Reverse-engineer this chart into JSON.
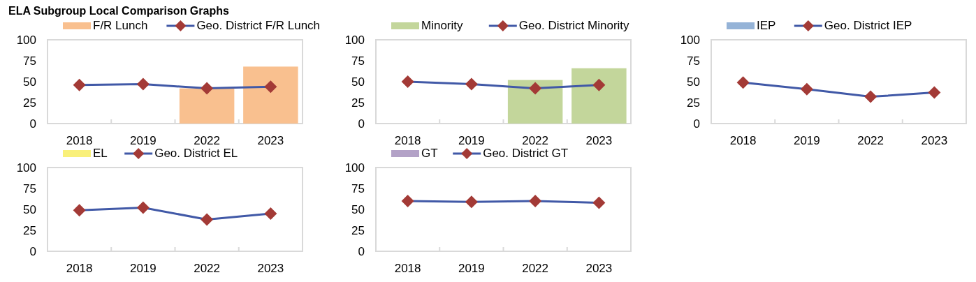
{
  "chart_data": [
    {
      "type": "bar",
      "title": "ELA Subgroup Local Comparison Graphs",
      "categories": [
        "2018",
        "2019",
        "2022",
        "2023"
      ],
      "ylim": [
        0,
        100
      ],
      "yticks": [
        0,
        25,
        50,
        75,
        100
      ],
      "grid": false,
      "legend": "top",
      "marker": "diamond",
      "series": [
        {
          "name": "F/R Lunch",
          "color": "#f9c08f",
          "values": [
            null,
            null,
            42,
            68
          ]
        },
        {
          "name": "Geo. District F/R Lunch",
          "type": "line",
          "color": "#4159a7",
          "values": [
            46,
            47,
            42,
            44
          ]
        }
      ]
    },
    {
      "type": "bar",
      "categories": [
        "2018",
        "2019",
        "2022",
        "2023"
      ],
      "ylim": [
        0,
        100
      ],
      "yticks": [
        0,
        25,
        50,
        75,
        100
      ],
      "grid": false,
      "legend": "top",
      "marker": "diamond",
      "series": [
        {
          "name": "Minority",
          "color": "#c3d69b",
          "values": [
            null,
            null,
            52,
            66
          ]
        },
        {
          "name": "Geo. District Minority",
          "type": "line",
          "color": "#4159a7",
          "values": [
            50,
            47,
            42,
            46
          ]
        }
      ]
    },
    {
      "type": "bar",
      "categories": [
        "2018",
        "2019",
        "2022",
        "2023"
      ],
      "ylim": [
        0,
        100
      ],
      "yticks": [
        0,
        25,
        50,
        75,
        100
      ],
      "grid": false,
      "legend": "top",
      "marker": "diamond",
      "series": [
        {
          "name": "IEP",
          "color": "#95b3d7",
          "values": [
            null,
            null,
            null,
            null
          ]
        },
        {
          "name": "Geo. District IEP",
          "type": "line",
          "color": "#4159a7",
          "values": [
            49,
            41,
            32,
            37
          ]
        }
      ]
    },
    {
      "type": "bar",
      "categories": [
        "2018",
        "2019",
        "2022",
        "2023"
      ],
      "ylim": [
        0,
        100
      ],
      "yticks": [
        0,
        25,
        50,
        75,
        100
      ],
      "grid": false,
      "legend": "top",
      "marker": "diamond",
      "series": [
        {
          "name": "EL",
          "color": "#f9f07a",
          "values": [
            null,
            null,
            null,
            null
          ]
        },
        {
          "name": "Geo. District EL",
          "type": "line",
          "color": "#4159a7",
          "values": [
            49,
            52,
            38,
            45
          ]
        }
      ]
    },
    {
      "type": "bar",
      "categories": [
        "2018",
        "2019",
        "2022",
        "2023"
      ],
      "ylim": [
        0,
        100
      ],
      "yticks": [
        0,
        25,
        50,
        75,
        100
      ],
      "grid": false,
      "legend": "top",
      "marker": "diamond",
      "series": [
        {
          "name": "GT",
          "color": "#b3a2c7",
          "values": [
            null,
            null,
            null,
            null
          ]
        },
        {
          "name": "Geo. District GT",
          "type": "line",
          "color": "#4159a7",
          "values": [
            60,
            59,
            60,
            58
          ]
        }
      ]
    }
  ]
}
